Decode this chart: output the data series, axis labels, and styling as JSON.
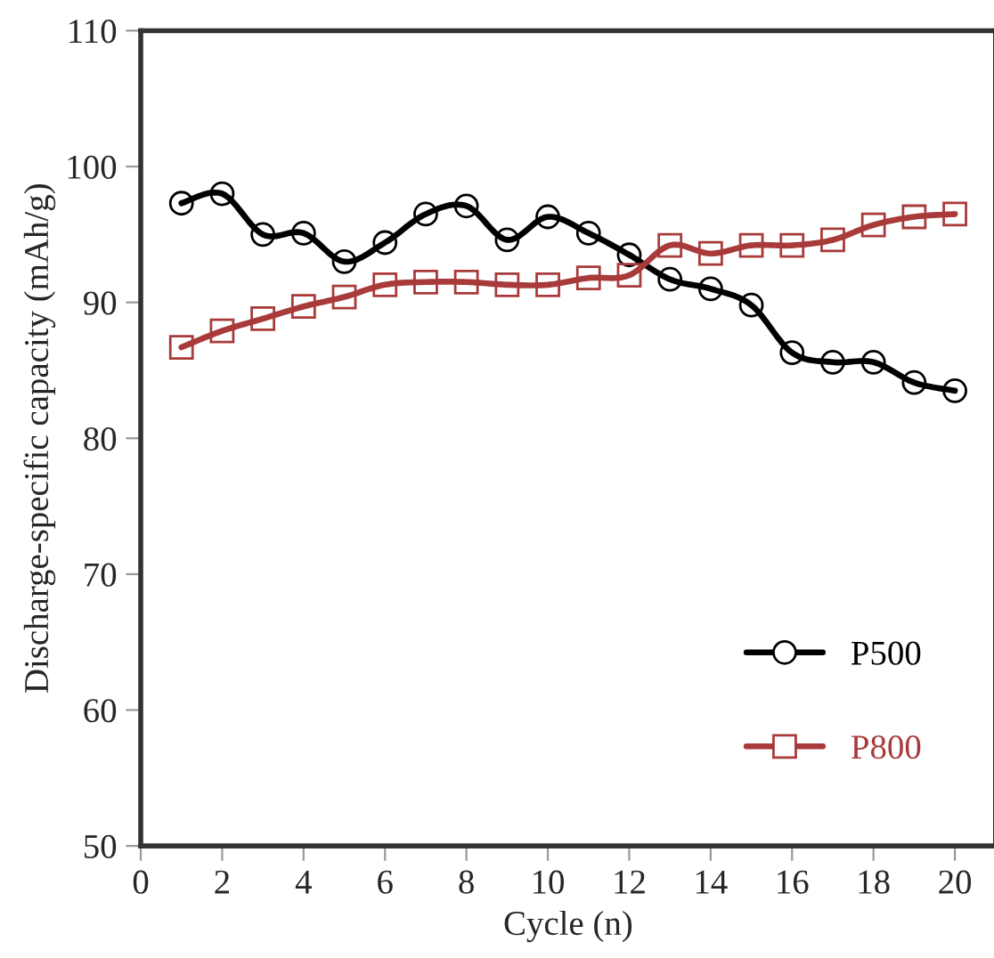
{
  "chart_data": {
    "type": "line",
    "xlabel": "Cycle (n)",
    "ylabel": "Discharge-specific capacity (mAh/g)",
    "x": [
      1,
      2,
      3,
      4,
      5,
      6,
      7,
      8,
      9,
      10,
      11,
      12,
      13,
      14,
      15,
      16,
      17,
      18,
      19,
      20
    ],
    "series": [
      {
        "name": "P500",
        "color": "#000000",
        "values": [
          97.3,
          98.0,
          95.0,
          95.1,
          93.0,
          94.4,
          96.5,
          97.1,
          94.6,
          96.3,
          95.1,
          93.5,
          91.7,
          91.0,
          89.8,
          86.3,
          85.6,
          85.6,
          84.1,
          83.5
        ]
      },
      {
        "name": "P800",
        "color": "#a83a3a",
        "marker": "square",
        "values": [
          86.7,
          87.9,
          88.8,
          89.7,
          90.4,
          91.3,
          91.5,
          91.5,
          91.3,
          91.3,
          91.8,
          92.0,
          94.2,
          93.6,
          94.2,
          94.2,
          94.6,
          95.7,
          96.3,
          96.5
        ]
      }
    ],
    "marker": "circle",
    "line_style": "solid",
    "xlim": [
      0,
      21
    ],
    "xticks": [
      0,
      2,
      4,
      6,
      8,
      10,
      12,
      14,
      16,
      18,
      20
    ],
    "ylim": [
      50,
      110
    ],
    "yticks": [
      50,
      60,
      70,
      80,
      90,
      100,
      110
    ],
    "grid": false,
    "legend": "bottom right"
  }
}
